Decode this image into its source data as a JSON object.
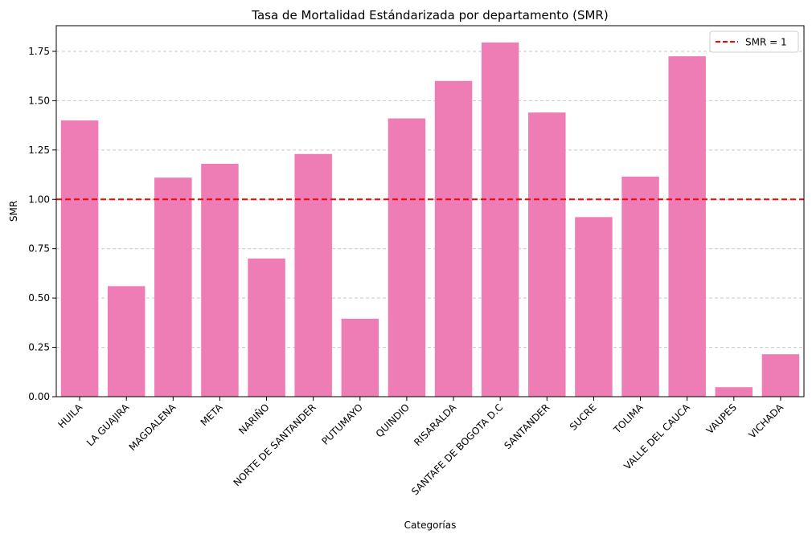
{
  "chart_data": {
    "type": "bar",
    "title": "Tasa de Mortalidad Estándarizada por departamento (SMR)",
    "xlabel": "Categorías",
    "ylabel": "SMR",
    "ylim": [
      0,
      1.88
    ],
    "yticks": [
      0.0,
      0.25,
      0.5,
      0.75,
      1.0,
      1.25,
      1.5,
      1.75
    ],
    "ytick_labels": [
      "0.00",
      "0.25",
      "0.50",
      "0.75",
      "1.00",
      "1.25",
      "1.50",
      "1.75"
    ],
    "grid": "y-dashed",
    "bar_color": "#ee7db5",
    "categories": [
      "HUILA",
      "LA GUAJIRA",
      "MAGDALENA",
      "META",
      "NARIÑO",
      "NORTE DE SANTANDER",
      "PUTUMAYO",
      "QUINDIO",
      "RISARALDA",
      "SANTAFE DE BOGOTA D.C",
      "SANTANDER",
      "SUCRE",
      "TOLIMA",
      "VALLE DEL CAUCA",
      "VAUPES",
      "VICHADA"
    ],
    "values": [
      1.4,
      0.56,
      1.11,
      1.18,
      0.7,
      1.23,
      0.395,
      1.41,
      1.6,
      1.795,
      1.44,
      0.91,
      1.115,
      1.725,
      0.048,
      0.215
    ],
    "reference_line": {
      "y": 1.0,
      "label": "SMR = 1",
      "color": "#ff0000",
      "style": "dashed"
    },
    "legend": {
      "position": "top-right",
      "entries": [
        "SMR = 1"
      ]
    }
  }
}
